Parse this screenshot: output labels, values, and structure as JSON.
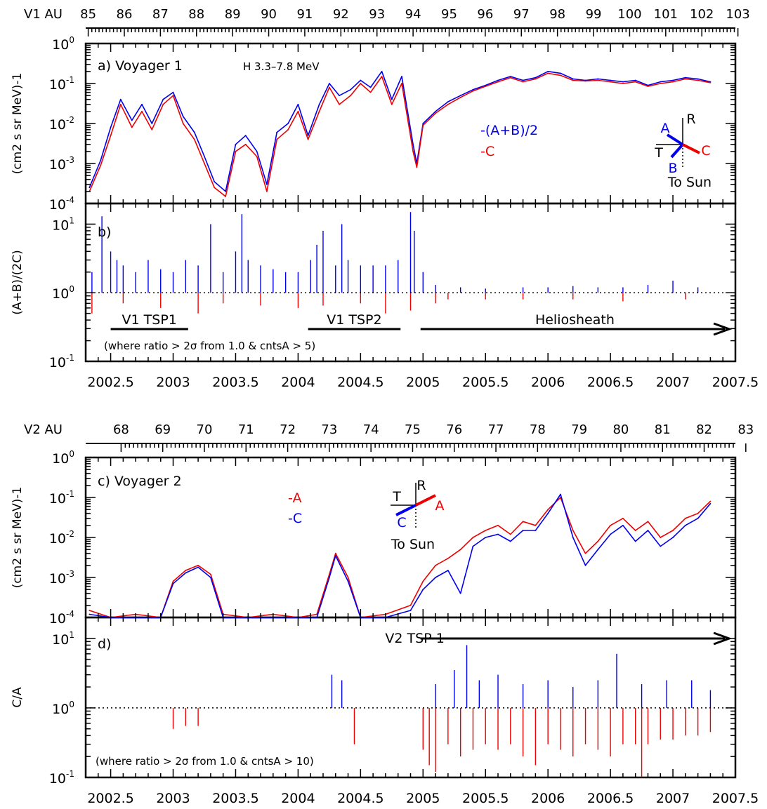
{
  "colors": {
    "blue": "#0000ee",
    "red": "#ee0000",
    "black": "#000000"
  },
  "chart_data": [
    {
      "type": "line",
      "panel": "a)",
      "title": "Voyager 1",
      "subtitle": "H 3.3–7.8 MeV",
      "ylabel": "(cm2 s sr MeV)-1",
      "yscale": "log",
      "ylim": [
        0.0001,
        1
      ],
      "xlim": [
        2002.3,
        2007.5
      ],
      "legend": [
        "-(A+B)/2",
        "-C"
      ],
      "legend_placement": "right",
      "top_axis": {
        "label": "V1  AU",
        "ticks": [
          85,
          86,
          87,
          88,
          89,
          90,
          91,
          92,
          93,
          94,
          95,
          96,
          97,
          98,
          99,
          100,
          101,
          102,
          103
        ]
      },
      "inset": {
        "labels": [
          "A",
          "R",
          "T",
          "B",
          "C",
          "To Sun"
        ]
      },
      "series": [
        {
          "name": "-(A+B)/2",
          "color": "#0000ee",
          "x": [
            2002.33,
            2002.42,
            2002.5,
            2002.58,
            2002.67,
            2002.75,
            2002.83,
            2002.92,
            2003.0,
            2003.08,
            2003.17,
            2003.25,
            2003.33,
            2003.42,
            2003.5,
            2003.58,
            2003.67,
            2003.75,
            2003.83,
            2003.92,
            2004.0,
            2004.08,
            2004.17,
            2004.25,
            2004.33,
            2004.42,
            2004.5,
            2004.58,
            2004.67,
            2004.75,
            2004.83,
            2004.92,
            2004.95,
            2005.0,
            2005.1,
            2005.2,
            2005.3,
            2005.4,
            2005.5,
            2005.6,
            2005.7,
            2005.8,
            2005.9,
            2006.0,
            2006.1,
            2006.2,
            2006.3,
            2006.4,
            2006.5,
            2006.6,
            2006.7,
            2006.8,
            2006.9,
            2007.0,
            2007.1,
            2007.2,
            2007.3
          ],
          "y": [
            0.00025,
            0.0012,
            0.008,
            0.04,
            0.012,
            0.03,
            0.01,
            0.04,
            0.06,
            0.015,
            0.006,
            0.0015,
            0.00035,
            0.0002,
            0.003,
            0.005,
            0.002,
            0.0003,
            0.006,
            0.01,
            0.03,
            0.005,
            0.03,
            0.1,
            0.05,
            0.07,
            0.12,
            0.08,
            0.2,
            0.04,
            0.15,
            0.003,
            0.001,
            0.01,
            0.02,
            0.035,
            0.05,
            0.07,
            0.09,
            0.12,
            0.15,
            0.12,
            0.14,
            0.2,
            0.18,
            0.13,
            0.12,
            0.13,
            0.12,
            0.11,
            0.12,
            0.09,
            0.11,
            0.12,
            0.14,
            0.13,
            0.11
          ]
        },
        {
          "name": "-C",
          "color": "#ee0000",
          "x": [
            2002.33,
            2002.42,
            2002.5,
            2002.58,
            2002.67,
            2002.75,
            2002.83,
            2002.92,
            2003.0,
            2003.08,
            2003.17,
            2003.25,
            2003.33,
            2003.42,
            2003.5,
            2003.58,
            2003.67,
            2003.75,
            2003.83,
            2003.92,
            2004.0,
            2004.08,
            2004.17,
            2004.25,
            2004.33,
            2004.42,
            2004.5,
            2004.58,
            2004.67,
            2004.75,
            2004.83,
            2004.92,
            2004.95,
            2005.0,
            2005.1,
            2005.2,
            2005.3,
            2005.4,
            2005.5,
            2005.6,
            2005.7,
            2005.8,
            2005.9,
            2006.0,
            2006.1,
            2006.2,
            2006.3,
            2006.4,
            2006.5,
            2006.6,
            2006.7,
            2006.8,
            2006.9,
            2007.0,
            2007.1,
            2007.2,
            2007.3
          ],
          "y": [
            0.0002,
            0.0009,
            0.005,
            0.03,
            0.008,
            0.02,
            0.007,
            0.03,
            0.05,
            0.01,
            0.004,
            0.001,
            0.00025,
            0.00015,
            0.002,
            0.003,
            0.0015,
            0.0002,
            0.004,
            0.007,
            0.02,
            0.004,
            0.02,
            0.08,
            0.03,
            0.05,
            0.1,
            0.06,
            0.15,
            0.03,
            0.1,
            0.002,
            0.0008,
            0.009,
            0.018,
            0.03,
            0.045,
            0.065,
            0.085,
            0.11,
            0.14,
            0.11,
            0.13,
            0.18,
            0.16,
            0.12,
            0.115,
            0.12,
            0.11,
            0.1,
            0.11,
            0.085,
            0.1,
            0.11,
            0.13,
            0.12,
            0.105
          ]
        }
      ]
    },
    {
      "type": "bar",
      "panel": "b)",
      "ylabel": "(A+B)/(2C)",
      "yscale": "log",
      "ylim": [
        0.1,
        20
      ],
      "baseline": 1,
      "xlim": [
        2002.3,
        2007.5
      ],
      "xticks": [
        "2002.5",
        "2003",
        "2003.5",
        "2004",
        "2004.5",
        "2005",
        "2005.5",
        "2006",
        "2006.5",
        "2007",
        "2007.5"
      ],
      "periods": [
        {
          "label": "V1  TSP1",
          "from": 2002.5,
          "to": 2003.12
        },
        {
          "label": "V1  TSP2",
          "from": 2004.08,
          "to": 2004.82
        },
        {
          "label": "Heliosheath",
          "from": 2004.98,
          "to": 2007.45,
          "arrow": true
        }
      ],
      "note": "(where ratio > 2σ from 1.0 & cntsA > 5)",
      "series": [
        {
          "name": "above",
          "color": "#0000ee",
          "x": [
            2002.35,
            2002.43,
            2002.5,
            2002.55,
            2002.6,
            2002.7,
            2002.8,
            2002.9,
            2003.0,
            2003.1,
            2003.2,
            2003.3,
            2003.4,
            2003.5,
            2003.55,
            2003.6,
            2003.7,
            2003.8,
            2003.9,
            2004.0,
            2004.1,
            2004.15,
            2004.2,
            2004.3,
            2004.35,
            2004.4,
            2004.5,
            2004.6,
            2004.7,
            2004.8,
            2004.9,
            2004.93,
            2005.0,
            2005.1,
            2005.3,
            2005.5,
            2005.8,
            2006.0,
            2006.2,
            2006.4,
            2006.6,
            2006.8,
            2007.0,
            2007.2
          ],
          "y": [
            2.0,
            13.0,
            4.0,
            3.0,
            2.5,
            2.0,
            3.0,
            2.2,
            2.0,
            3.0,
            2.5,
            10.0,
            2.0,
            4.0,
            14.0,
            3.0,
            2.5,
            2.2,
            2.0,
            2.0,
            3.0,
            5.0,
            8.0,
            2.5,
            10.0,
            3.0,
            2.5,
            2.5,
            2.5,
            3.0,
            15.0,
            8.0,
            2.0,
            1.3,
            1.2,
            1.15,
            1.2,
            1.2,
            1.25,
            1.2,
            1.2,
            1.3,
            1.5,
            1.2
          ]
        },
        {
          "name": "below",
          "color": "#ee0000",
          "x": [
            2002.35,
            2002.6,
            2002.9,
            2003.2,
            2003.4,
            2003.7,
            2004.0,
            2004.2,
            2004.5,
            2004.7,
            2004.9,
            2005.1,
            2005.2,
            2005.5,
            2005.8,
            2006.2,
            2006.6,
            2007.1
          ],
          "y": [
            0.5,
            0.7,
            0.6,
            0.5,
            0.7,
            0.65,
            0.6,
            0.65,
            0.7,
            0.5,
            0.55,
            0.7,
            0.8,
            0.8,
            0.8,
            0.8,
            0.75,
            0.8
          ]
        }
      ]
    },
    {
      "type": "line",
      "panel": "c)",
      "title": "Voyager 2",
      "ylabel": "(cm2 s sr MeV)-1",
      "yscale": "log",
      "ylim": [
        0.0001,
        1
      ],
      "xlim": [
        2002.3,
        2007.5
      ],
      "legend": [
        "-A",
        "-C"
      ],
      "legend_placement": "center",
      "top_axis": {
        "label": "V2  AU",
        "ticks": [
          68,
          69,
          70,
          71,
          72,
          73,
          74,
          75,
          76,
          77,
          78,
          79,
          80,
          81,
          82,
          83
        ]
      },
      "inset": {
        "labels": [
          "R",
          "T",
          "A",
          "C",
          "To Sun"
        ]
      },
      "series": [
        {
          "name": "-A",
          "color": "#ee0000",
          "x": [
            2002.33,
            2002.5,
            2002.7,
            2002.9,
            2003.0,
            2003.1,
            2003.2,
            2003.3,
            2003.4,
            2003.6,
            2003.8,
            2004.0,
            2004.15,
            2004.25,
            2004.3,
            2004.4,
            2004.5,
            2004.7,
            2004.9,
            2005.0,
            2005.1,
            2005.2,
            2005.3,
            2005.4,
            2005.5,
            2005.6,
            2005.7,
            2005.8,
            2005.9,
            2006.0,
            2006.1,
            2006.2,
            2006.3,
            2006.4,
            2006.5,
            2006.6,
            2006.7,
            2006.8,
            2006.9,
            2007.0,
            2007.1,
            2007.2,
            2007.3
          ],
          "y": [
            0.00015,
            0.0001,
            0.00012,
            0.0001,
            0.0008,
            0.0015,
            0.002,
            0.0012,
            0.00012,
            0.0001,
            0.00012,
            0.0001,
            0.00012,
            0.0012,
            0.004,
            0.001,
            0.0001,
            0.00012,
            0.0002,
            0.0008,
            0.002,
            0.003,
            0.005,
            0.01,
            0.015,
            0.02,
            0.012,
            0.025,
            0.02,
            0.05,
            0.1,
            0.015,
            0.004,
            0.008,
            0.02,
            0.03,
            0.015,
            0.025,
            0.01,
            0.015,
            0.03,
            0.04,
            0.08
          ]
        },
        {
          "name": "-C",
          "color": "#0000ee",
          "x": [
            2002.33,
            2002.5,
            2002.7,
            2002.9,
            2003.0,
            2003.1,
            2003.2,
            2003.3,
            2003.4,
            2003.6,
            2003.8,
            2004.0,
            2004.15,
            2004.25,
            2004.3,
            2004.4,
            2004.5,
            2004.7,
            2004.9,
            2005.0,
            2005.1,
            2005.2,
            2005.3,
            2005.4,
            2005.5,
            2005.6,
            2005.7,
            2005.8,
            2005.9,
            2006.0,
            2006.1,
            2006.2,
            2006.3,
            2006.4,
            2006.5,
            2006.6,
            2006.7,
            2006.8,
            2006.9,
            2007.0,
            2007.1,
            2007.2,
            2007.3
          ],
          "y": [
            0.00012,
            0.0001,
            0.0001,
            0.0001,
            0.0007,
            0.0013,
            0.0018,
            0.001,
            0.0001,
            0.0001,
            0.0001,
            0.0001,
            0.0001,
            0.001,
            0.0035,
            0.0008,
            0.0001,
            0.0001,
            0.00015,
            0.0005,
            0.001,
            0.0015,
            0.0004,
            0.006,
            0.01,
            0.012,
            0.008,
            0.015,
            0.015,
            0.04,
            0.12,
            0.01,
            0.002,
            0.005,
            0.012,
            0.02,
            0.008,
            0.015,
            0.006,
            0.01,
            0.02,
            0.03,
            0.07
          ]
        }
      ]
    },
    {
      "type": "bar",
      "panel": "d)",
      "ylabel": "C/A",
      "yscale": "log",
      "ylim": [
        0.1,
        20
      ],
      "baseline": 1,
      "xlim": [
        2002.3,
        2007.5
      ],
      "xticks": [
        "2002.5",
        "2003",
        "2003.5",
        "2004",
        "2004.5",
        "2005",
        "2005.5",
        "2006",
        "2006.5",
        "2007",
        "2007.5"
      ],
      "periods": [
        {
          "label": "V2  TSP 1",
          "from": 2004.98,
          "to": 2007.45,
          "arrow": true
        }
      ],
      "note": "(where ratio > 2σ from 1.0 & cntsA > 10)",
      "series": [
        {
          "name": "above",
          "color": "#0000ee",
          "x": [
            2004.27,
            2004.35,
            2005.1,
            2005.25,
            2005.35,
            2005.45,
            2005.6,
            2005.8,
            2006.0,
            2006.2,
            2006.4,
            2006.55,
            2006.75,
            2006.95,
            2007.15,
            2007.3
          ],
          "y": [
            3.0,
            2.5,
            2.2,
            3.5,
            8.0,
            2.5,
            3.0,
            2.2,
            2.5,
            2.0,
            2.5,
            6.0,
            2.2,
            2.5,
            2.5,
            1.8
          ]
        },
        {
          "name": "below",
          "color": "#ee0000",
          "x": [
            2003.0,
            2003.1,
            2003.2,
            2004.45,
            2005.0,
            2005.05,
            2005.1,
            2005.2,
            2005.3,
            2005.4,
            2005.5,
            2005.6,
            2005.7,
            2005.8,
            2005.9,
            2006.0,
            2006.1,
            2006.2,
            2006.3,
            2006.4,
            2006.5,
            2006.6,
            2006.7,
            2006.75,
            2006.8,
            2006.9,
            2007.0,
            2007.1,
            2007.2,
            2007.3
          ],
          "y": [
            0.5,
            0.55,
            0.55,
            0.3,
            0.25,
            0.15,
            0.12,
            0.3,
            0.2,
            0.25,
            0.3,
            0.25,
            0.3,
            0.2,
            0.15,
            0.3,
            0.25,
            0.2,
            0.3,
            0.25,
            0.2,
            0.3,
            0.3,
            0.1,
            0.3,
            0.35,
            0.35,
            0.4,
            0.4,
            0.45
          ]
        }
      ]
    }
  ]
}
